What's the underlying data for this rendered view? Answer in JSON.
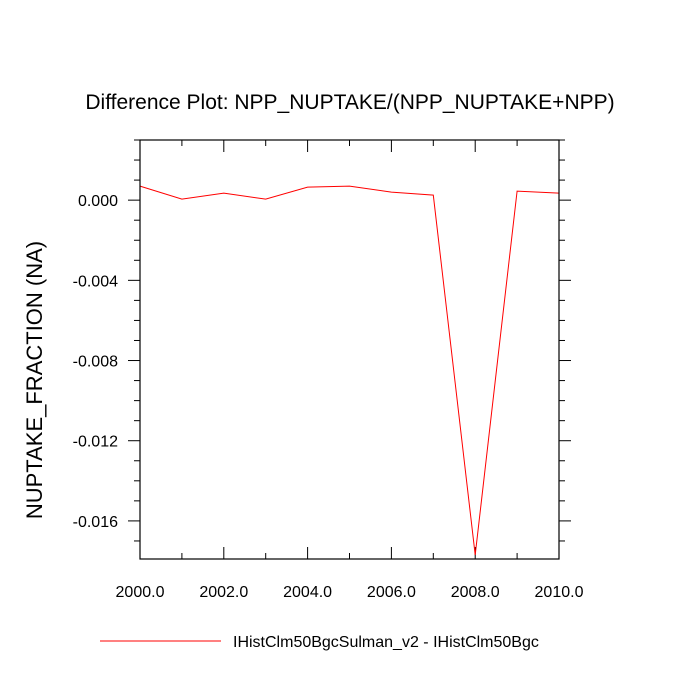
{
  "chart_data": {
    "type": "line",
    "title": "Difference Plot: NPP_NUPTAKE/(NPP_NUPTAKE+NPP)",
    "xlabel": "",
    "ylabel": "NUPTAKE_FRACTION  (NA)",
    "xlim": [
      2000,
      2010
    ],
    "ylim": [
      -0.0179,
      0.003
    ],
    "x_ticks": [
      2000,
      2002,
      2004,
      2006,
      2008,
      2010
    ],
    "x_tick_labels": [
      "2000.0",
      "2002.0",
      "2004.0",
      "2006.0",
      "2008.0",
      "2010.0"
    ],
    "y_ticks": [
      0.0,
      -0.004,
      -0.008,
      -0.012,
      -0.016
    ],
    "y_tick_labels": [
      "0.000",
      "-0.004",
      "-0.008",
      "-0.012",
      "-0.016"
    ],
    "grid": false,
    "legend_position": "bottom",
    "series": [
      {
        "name": "IHistClm50BgcSulman_v2 - IHistClm50Bgc",
        "color": "#ff0000",
        "x": [
          2000,
          2001,
          2002,
          2003,
          2004,
          2005,
          2006,
          2007,
          2008,
          2009,
          2010
        ],
        "y": [
          0.0007,
          5e-05,
          0.00035,
          5e-05,
          0.00065,
          0.0007,
          0.0004,
          0.00025,
          -0.0177,
          0.00045,
          0.00035
        ]
      }
    ]
  }
}
